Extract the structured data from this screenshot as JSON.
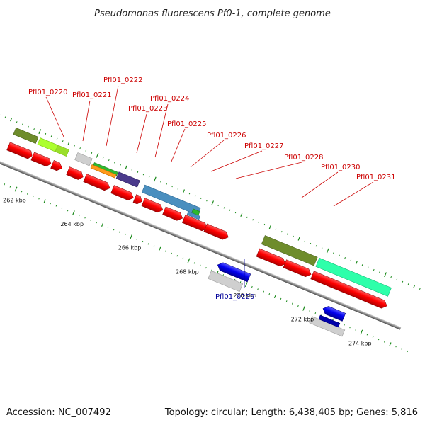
{
  "title": "Pseudomonas fluorescens Pf0-1, complete genome",
  "footer": {
    "accession": "Accession: NC_007492",
    "topology": "Topology: circular; Length: 6,438,405 bp; Genes: 5,816"
  },
  "colors": {
    "label_forward": "#cc0000",
    "label_reverse": "#000099",
    "backbone": "#8c8c8c",
    "tick": "#1a8a1a"
  },
  "scale": {
    "ticks": [
      {
        "label": "262 kbp",
        "kbp": 262
      },
      {
        "label": "264 kbp",
        "kbp": 264
      },
      {
        "label": "266 kbp",
        "kbp": 266
      },
      {
        "label": "268 kbp",
        "kbp": 268
      },
      {
        "label": "270 kbp",
        "kbp": 270
      },
      {
        "label": "272 kbp",
        "kbp": 272
      },
      {
        "label": "274 kbp",
        "kbp": 274
      }
    ]
  },
  "gene_labels": [
    {
      "text": "Pfl01_0220",
      "strand": "forward"
    },
    {
      "text": "Pfl01_0221",
      "strand": "forward"
    },
    {
      "text": "Pfl01_0222",
      "strand": "forward"
    },
    {
      "text": "Pfl01_0223",
      "strand": "forward"
    },
    {
      "text": "Pfl01_0224",
      "strand": "forward"
    },
    {
      "text": "Pfl01_0225",
      "strand": "forward"
    },
    {
      "text": "Pfl01_0226",
      "strand": "forward"
    },
    {
      "text": "Pfl01_0227",
      "strand": "forward"
    },
    {
      "text": "Pfl01_0228",
      "strand": "forward"
    },
    {
      "text": "Pfl01_0230",
      "strand": "forward"
    },
    {
      "text": "Pfl01_0231",
      "strand": "forward"
    },
    {
      "text": "Pfl01_0229",
      "strand": "reverse"
    }
  ]
}
